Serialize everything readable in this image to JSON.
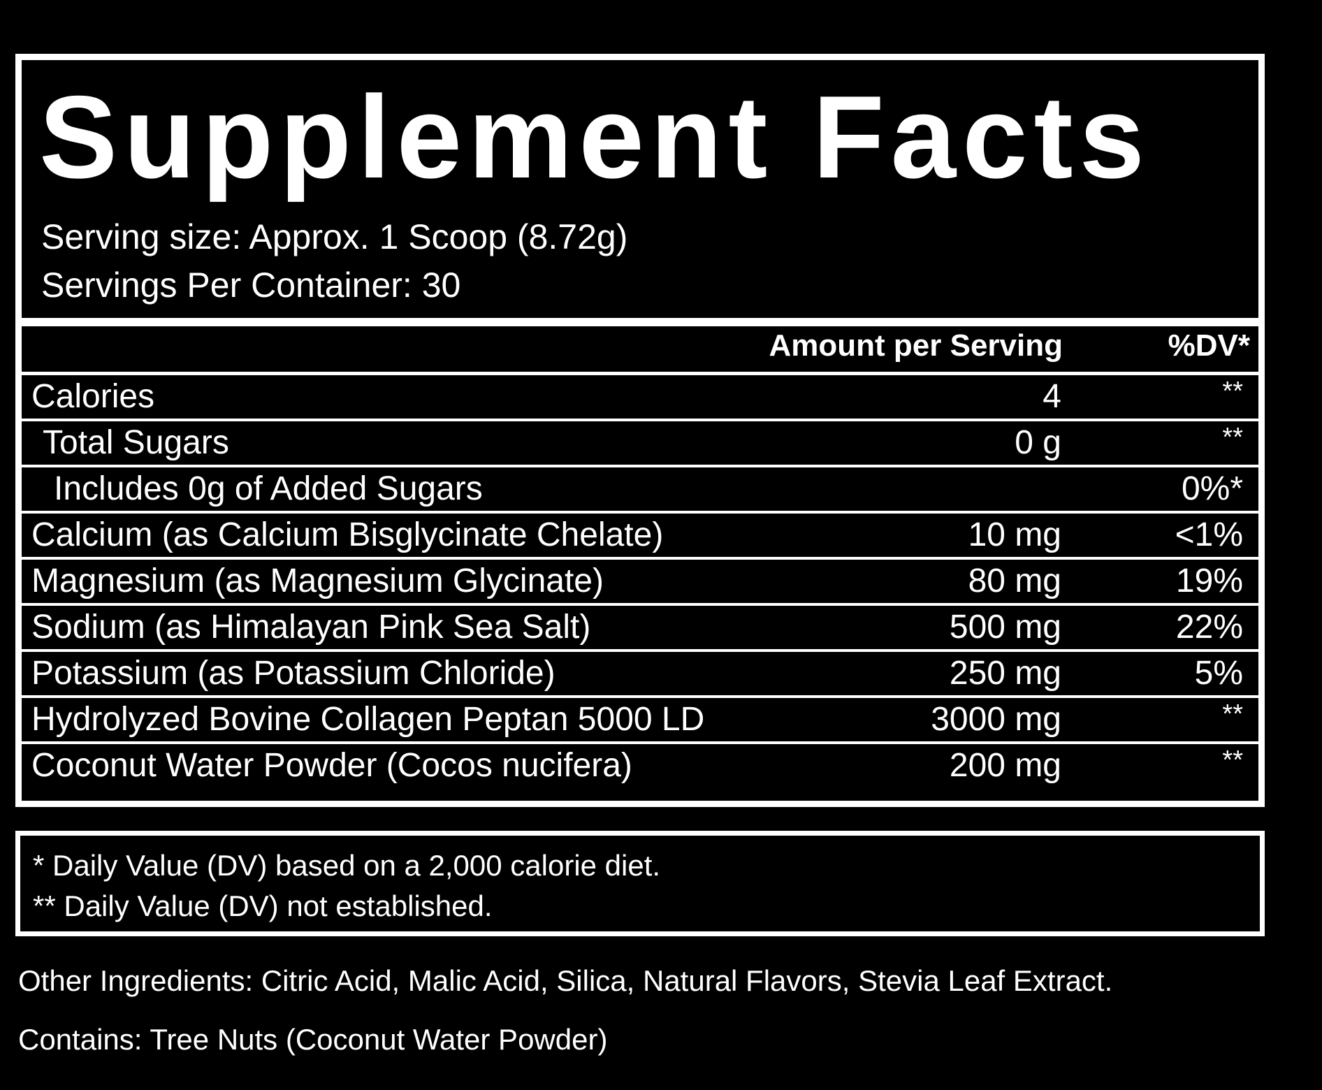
{
  "title": "Supplement Facts",
  "serving_size": "Serving size: Approx. 1 Scoop (8.72g)",
  "servings_per_container": "Servings Per Container: 30",
  "columns": {
    "amount": "Amount per Serving",
    "dv": "%DV*"
  },
  "rows": [
    {
      "name": "Calories",
      "amount": "4",
      "dv": "**"
    },
    {
      "name": "Total Sugars",
      "amount": "0 g",
      "dv": "**"
    },
    {
      "name": "Includes 0g of Added Sugars",
      "amount": "",
      "dv": "0%*"
    },
    {
      "name": "Calcium (as Calcium Bisglycinate Chelate)",
      "amount": "10 mg",
      "dv": "<1%"
    },
    {
      "name": "Magnesium (as Magnesium Glycinate)",
      "amount": "80 mg",
      "dv": "19%"
    },
    {
      "name": "Sodium (as Himalayan Pink Sea Salt)",
      "amount": "500 mg",
      "dv": "22%"
    },
    {
      "name": "Potassium (as Potassium Chloride)",
      "amount": "250 mg",
      "dv": "5%"
    },
    {
      "name": "Hydrolyzed Bovine Collagen Peptan 5000 LD",
      "amount": "3000 mg",
      "dv": "**"
    },
    {
      "name": "Coconut Water Powder (Cocos nucifera)",
      "amount": "200 mg",
      "dv": "**"
    }
  ],
  "footnotes": [
    "* Daily Value (DV) based on a 2,000 calorie diet.",
    "** Daily Value (DV) not established."
  ],
  "other_ingredients": "Other Ingredients: Citric Acid, Malic Acid, Silica, Natural Flavors, Stevia Leaf Extract.",
  "contains": "Contains: Tree Nuts (Coconut Water Powder)",
  "colors": {
    "background": "#000000",
    "foreground": "#ffffff"
  }
}
